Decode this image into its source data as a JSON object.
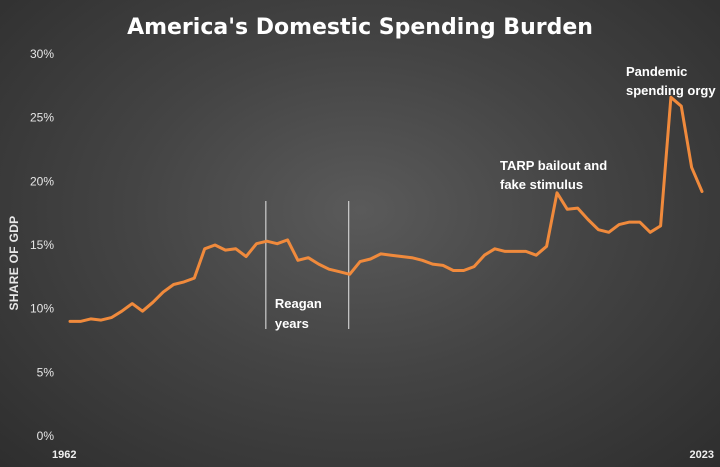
{
  "chart_data": {
    "type": "line",
    "title": "America's Domestic Spending Burden",
    "ylabel": "SHARE OF GDP",
    "xlabel": "",
    "ylim": [
      0,
      30
    ],
    "yticks": [
      "0%",
      "5%",
      "10%",
      "15%",
      "20%",
      "25%",
      "30%"
    ],
    "xtick_labels": [
      {
        "year": 1962,
        "label": "1962"
      },
      {
        "year": 2023,
        "label": "2023"
      }
    ],
    "grid": false,
    "line_color": "#f08a3c",
    "series": [
      {
        "x": [
          1962,
          1963,
          1964,
          1965,
          1966,
          1967,
          1968,
          1969,
          1970,
          1971,
          1972,
          1973,
          1974,
          1975,
          1976,
          1977,
          1978,
          1979,
          1980,
          1981,
          1982,
          1983,
          1984,
          1985,
          1986,
          1987,
          1988,
          1989,
          1990,
          1991,
          1992,
          1993,
          1994,
          1995,
          1996,
          1997,
          1998,
          1999,
          2000,
          2001,
          2002,
          2003,
          2004,
          2005,
          2006,
          2007,
          2008,
          2009,
          2010,
          2011,
          2012,
          2013,
          2014,
          2015,
          2016,
          2017,
          2018,
          2019,
          2020,
          2021,
          2022,
          2023
        ],
        "values": [
          9.0,
          9.0,
          9.2,
          9.1,
          9.3,
          9.8,
          10.4,
          9.8,
          10.5,
          11.3,
          11.9,
          12.1,
          12.4,
          14.7,
          15.0,
          14.6,
          14.7,
          14.1,
          15.1,
          15.3,
          15.1,
          15.4,
          13.8,
          14.0,
          13.5,
          13.1,
          12.9,
          12.7,
          13.7,
          13.9,
          14.3,
          14.2,
          14.1,
          14.0,
          13.8,
          13.5,
          13.4,
          13.0,
          13.0,
          13.3,
          14.2,
          14.7,
          14.5,
          14.5,
          14.5,
          14.2,
          14.9,
          19.1,
          17.8,
          17.9,
          17.0,
          16.2,
          16.0,
          16.6,
          16.8,
          16.8,
          16.0,
          16.5,
          26.6,
          25.9,
          21.1,
          19.2
        ]
      }
    ],
    "annotations": [
      {
        "lines": [
          "Reagan",
          "years"
        ],
        "x1": 1981,
        "x2": 1989
      },
      {
        "lines": [
          "TARP bailout and",
          "fake stimulus"
        ],
        "year": 2009
      },
      {
        "lines": [
          "Pandemic",
          "spending orgy"
        ],
        "year": 2020
      }
    ]
  }
}
